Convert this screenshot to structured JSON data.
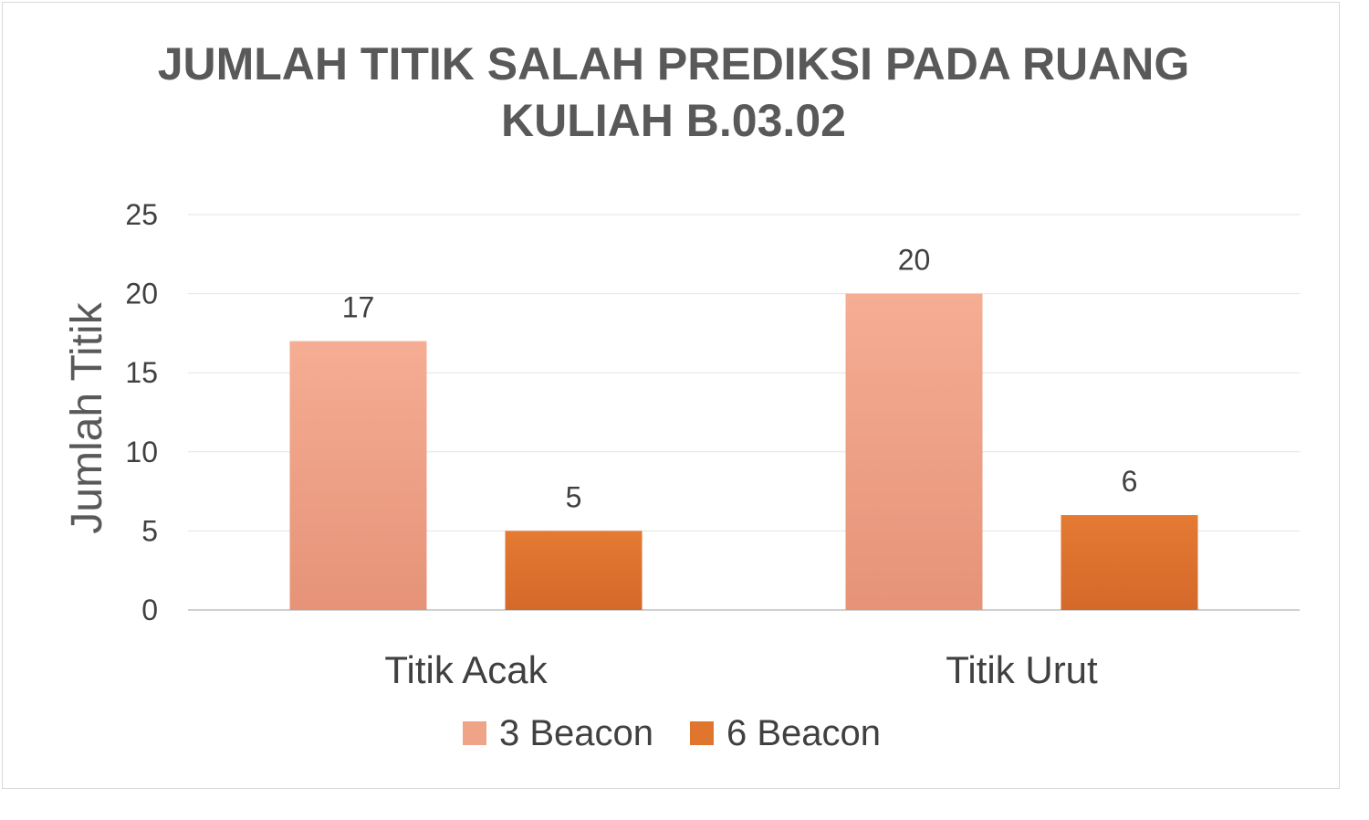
{
  "chart_data": {
    "type": "bar",
    "title": "JUMLAH TITIK SALAH PREDIKSI PADA RUANG KULIAH B.03.02",
    "xlabel": "",
    "ylabel": "Jumlah Titik",
    "categories": [
      "Titik Acak",
      "Titik Urut"
    ],
    "series": [
      {
        "name": "3 Beacon",
        "values": [
          17,
          20
        ],
        "color": "#f0a487"
      },
      {
        "name": "6 Beacon",
        "values": [
          5,
          6
        ],
        "color": "#e0762d"
      }
    ],
    "ylim": [
      0,
      25
    ],
    "yticks": [
      0,
      5,
      10,
      15,
      20,
      25
    ],
    "grid": true,
    "legend": "bottom",
    "data_labels": true
  }
}
